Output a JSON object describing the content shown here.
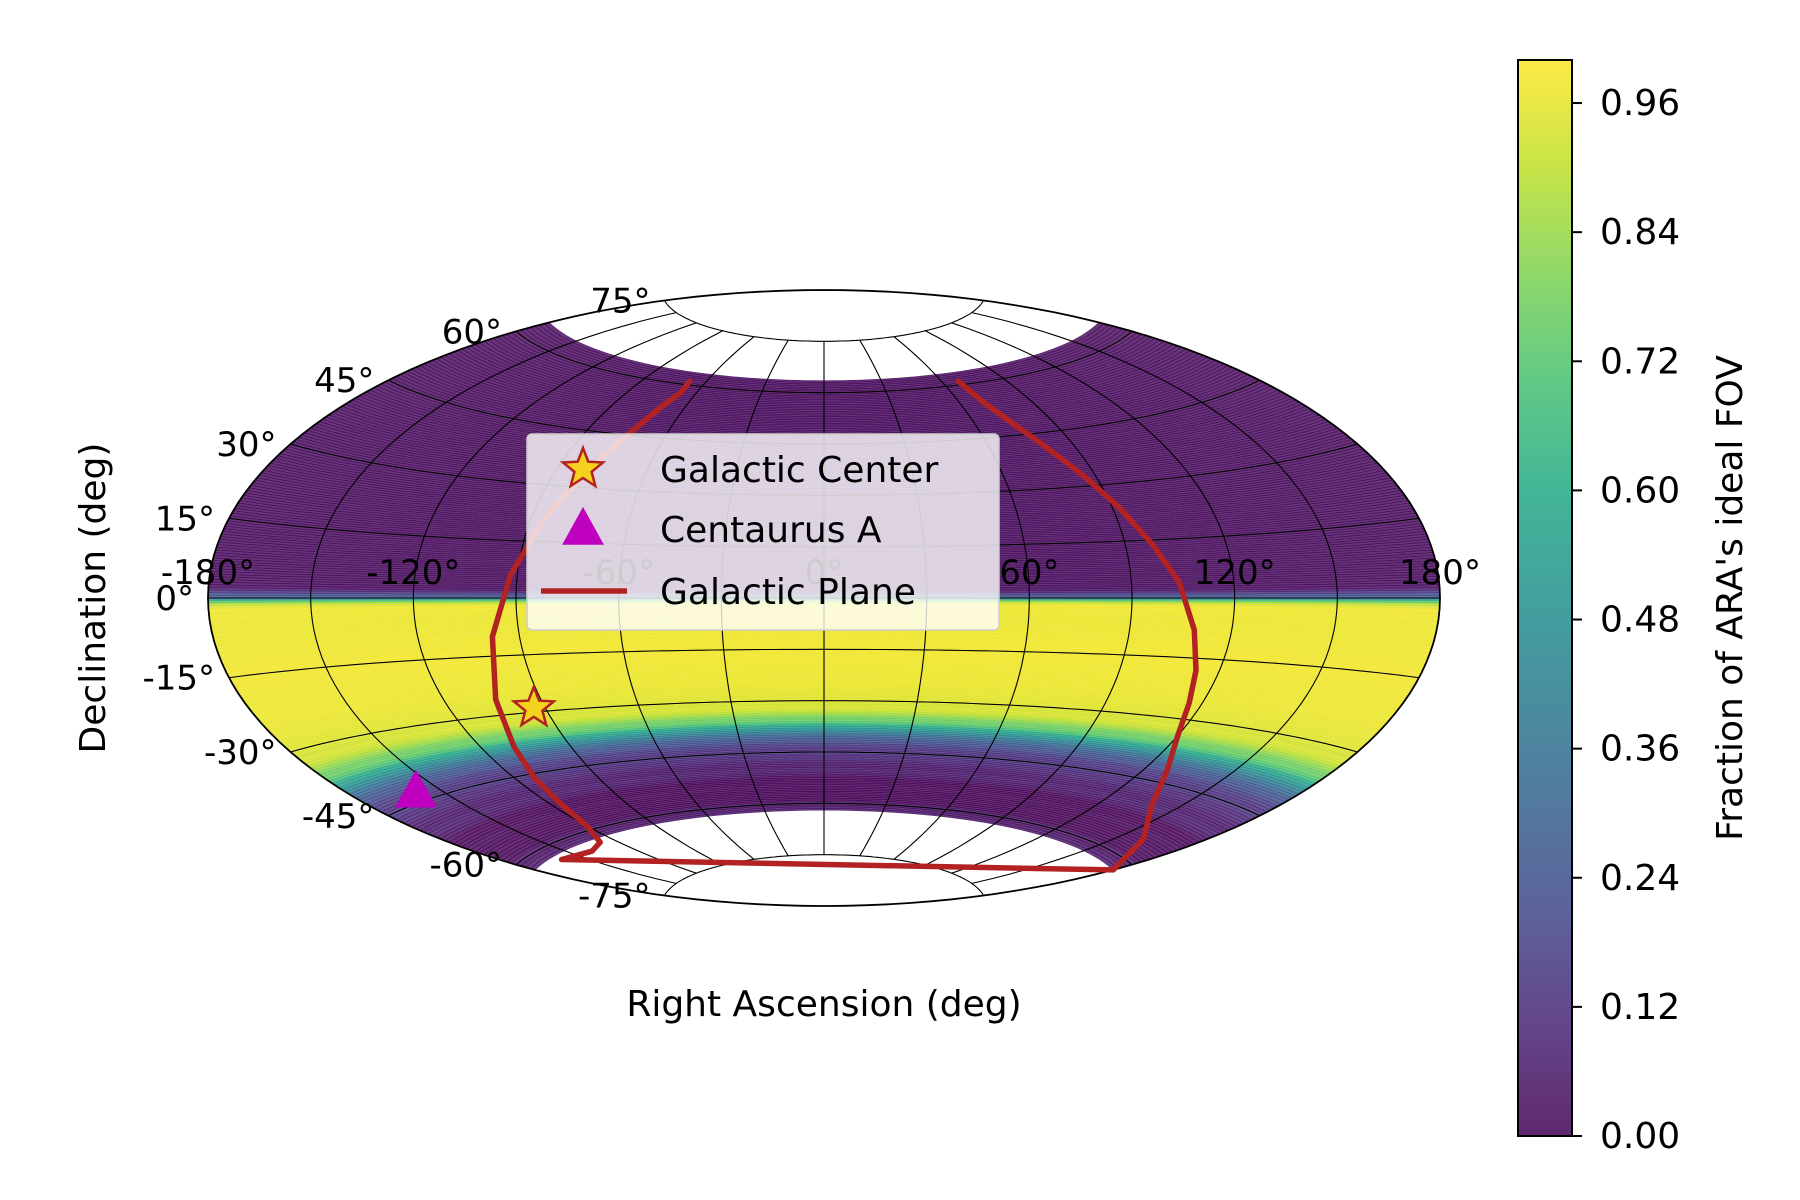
{
  "chart_data": {
    "type": "heatmap",
    "projection": "aitoff",
    "xlabel": "Right Ascension (deg)",
    "ylabel": "Declination (deg)",
    "xlim": [
      -180,
      180
    ],
    "ylim": [
      -90,
      90
    ],
    "grid": true,
    "ra_ticks": [
      -180,
      -120,
      -60,
      0,
      60,
      120,
      180
    ],
    "ra_tick_labels": [
      "-180°",
      "-120°",
      "-60°",
      "0°",
      "60°",
      "120°",
      "180°"
    ],
    "dec_ticks": [
      75,
      60,
      45,
      30,
      15,
      0,
      -15,
      -30,
      -45,
      -60,
      -75
    ],
    "dec_tick_labels": [
      "75°",
      "60°",
      "45°",
      "30°",
      "15°",
      "0°",
      "-15°",
      "-30°",
      "-45°",
      "-60°",
      "-75°"
    ],
    "fov_fraction_profile": {
      "dec": [
        70,
        64,
        63.5,
        45,
        30,
        15,
        2,
        0,
        -1,
        -2,
        -5,
        -15,
        -25,
        -30,
        -33,
        -36,
        -38,
        -40,
        -43,
        -47,
        -50,
        -62,
        -62.5,
        -70
      ],
      "value": [
        null,
        null,
        0.02,
        0.02,
        0.02,
        0.02,
        0.02,
        0.3,
        0.85,
        0.98,
        0.97,
        0.98,
        0.97,
        0.95,
        0.88,
        0.72,
        0.55,
        0.35,
        0.18,
        0.06,
        0.03,
        0.02,
        null,
        null
      ]
    },
    "series": [
      {
        "name": "Galactic Center",
        "marker": "star",
        "color": "#f5d21e",
        "edgecolor": "#b22222",
        "x": [
          -93.6
        ],
        "y": [
          -28.9
        ]
      },
      {
        "name": "Centaurus A",
        "marker": "triangle",
        "color": "#bf00bf",
        "x": [
          -158.6
        ],
        "y": [
          -43.0
        ]
      },
      {
        "name": "Galactic Plane",
        "type": "line",
        "color": "#b22222",
        "x": [
          -68,
          -67,
          -70,
          -74,
          -80,
          -86,
          -92,
          -98,
          -104,
          -109,
          -113,
          -116,
          -120,
          -128,
          -140,
          -160,
          180,
          160,
          140,
          128,
          120,
          116,
          113,
          109,
          104,
          98,
          92,
          86,
          80,
          74,
          70,
          68
        ],
        "y": [
          61,
          58,
          53,
          45,
          34,
          21,
          6,
          -10,
          -26,
          -38,
          -46,
          -53,
          -59,
          -63,
          -64,
          -63,
          -62,
          -56,
          -50,
          -42,
          -34,
          -26,
          -18,
          -8,
          4,
          14,
          24,
          33,
          41,
          49,
          55,
          61
        ]
      }
    ],
    "legend": {
      "position": "upper-left",
      "entries": [
        "Galactic Center",
        "Centaurus A",
        "Galactic Plane"
      ]
    },
    "colorbar": {
      "label": "Fraction of ARA's ideal FOV",
      "cmap": "viridis",
      "range": [
        0.0,
        1.0
      ],
      "ticks": [
        0.0,
        0.12,
        0.24,
        0.36,
        0.48,
        0.6,
        0.72,
        0.84,
        0.96
      ],
      "tick_labels": [
        "0.00",
        "0.12",
        "0.24",
        "0.36",
        "0.48",
        "0.60",
        "0.72",
        "0.84",
        "0.96"
      ]
    }
  }
}
